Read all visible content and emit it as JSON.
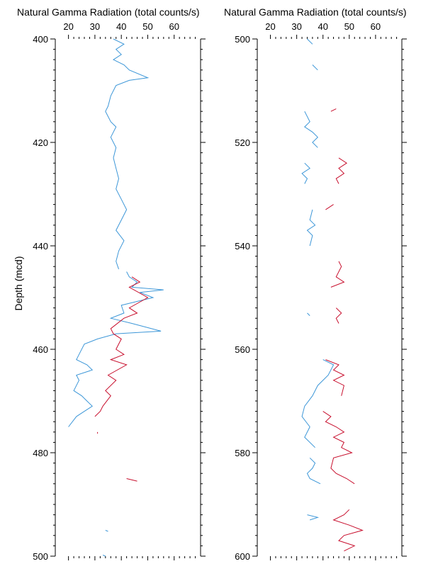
{
  "colors": {
    "blue": "#3d97d8",
    "red": "#c8102e"
  },
  "chart_data": [
    {
      "type": "line",
      "title": "Natural Gamma Radiation (total counts/s)",
      "ylabel": "Depth (mcd)",
      "xlim": [
        15,
        70
      ],
      "ylim": [
        400,
        500
      ],
      "y_reversed": true,
      "x_ticks": [
        "20",
        "30",
        "40",
        "50",
        "60"
      ],
      "y_ticks": [
        "400",
        "420",
        "440",
        "460",
        "480",
        "500"
      ],
      "series": [
        {
          "color": "blue",
          "segments": [
            [
              [
                37,
                400
              ],
              [
                41,
                401
              ],
              [
                38,
                402
              ],
              [
                40,
                403
              ],
              [
                37,
                404
              ],
              [
                41,
                405
              ],
              [
                43,
                406
              ],
              [
                50,
                407.5
              ],
              [
                43,
                408
              ],
              [
                38,
                409
              ],
              [
                36,
                411
              ],
              [
                35,
                413
              ],
              [
                34,
                414
              ],
              [
                36,
                416
              ],
              [
                38,
                417
              ],
              [
                36,
                419
              ],
              [
                38,
                421
              ],
              [
                37,
                423
              ],
              [
                38,
                425
              ],
              [
                39,
                427
              ],
              [
                38,
                429
              ],
              [
                40,
                431
              ],
              [
                42,
                433
              ],
              [
                40,
                435
              ],
              [
                38,
                437
              ],
              [
                41,
                439
              ],
              [
                39,
                441
              ],
              [
                38,
                443
              ],
              [
                39,
                444.5
              ]
            ],
            [
              [
                42,
                445
              ],
              [
                43,
                446
              ],
              [
                46,
                447
              ],
              [
                44,
                448
              ],
              [
                56,
                448.5
              ],
              [
                47,
                449
              ],
              [
                52,
                450
              ],
              [
                40,
                451.5
              ],
              [
                41,
                453
              ],
              [
                36,
                454
              ],
              [
                44,
                455
              ],
              [
                55,
                456.5
              ],
              [
                38,
                457
              ],
              [
                31,
                458
              ],
              [
                26,
                459
              ],
              [
                24,
                461
              ],
              [
                23,
                462
              ],
              [
                27,
                463
              ],
              [
                29,
                464
              ],
              [
                23,
                465
              ],
              [
                24,
                466
              ],
              [
                22,
                468
              ],
              [
                25,
                469
              ],
              [
                27,
                470
              ],
              [
                29,
                471
              ],
              [
                26,
                472
              ],
              [
                23,
                473
              ],
              [
                20,
                475
              ]
            ]
          ]
        },
        {
          "color": "red",
          "segments": [
            [
              [
                44,
                446
              ],
              [
                47,
                447
              ],
              [
                43,
                448
              ],
              [
                50,
                450
              ],
              [
                43,
                452
              ],
              [
                46,
                453
              ],
              [
                41,
                454
              ],
              [
                36,
                456
              ],
              [
                37,
                457
              ],
              [
                40,
                458
              ],
              [
                38,
                460
              ],
              [
                41,
                461
              ],
              [
                36,
                462
              ],
              [
                42,
                463
              ],
              [
                35,
                465
              ],
              [
                38,
                466
              ],
              [
                34,
                468
              ],
              [
                36,
                469
              ],
              [
                33,
                471
              ],
              [
                32,
                472
              ],
              [
                30,
                473
              ]
            ],
            [
              [
                31,
                476
              ],
              [
                31,
                476.3
              ]
            ],
            [
              [
                42,
                485
              ],
              [
                46,
                485.5
              ]
            ]
          ]
        },
        {
          "color": "blue",
          "segments": [
            [
              [
                34,
                495
              ],
              [
                35,
                495.2
              ]
            ],
            [
              [
                33,
                499.8
              ],
              [
                34,
                500
              ]
            ]
          ]
        }
      ]
    },
    {
      "type": "line",
      "title": "Natural Gamma Radiation (total counts/s)",
      "ylabel": "",
      "xlim": [
        15,
        70
      ],
      "ylim": [
        500,
        600
      ],
      "y_reversed": true,
      "x_ticks": [
        "20",
        "30",
        "40",
        "50",
        "60"
      ],
      "y_ticks": [
        "500",
        "520",
        "540",
        "560",
        "580",
        "600"
      ],
      "series": [
        {
          "color": "blue",
          "segments": [
            [
              [
                34,
                500
              ],
              [
                36,
                501
              ]
            ],
            [
              [
                36,
                505
              ],
              [
                38,
                506
              ]
            ],
            [
              [
                33,
                514
              ],
              [
                35,
                516
              ],
              [
                33,
                517
              ],
              [
                36,
                518
              ],
              [
                38,
                519
              ],
              [
                36,
                520
              ],
              [
                38,
                521
              ]
            ],
            [
              [
                33,
                524
              ],
              [
                35,
                525
              ],
              [
                32,
                526
              ],
              [
                34,
                527
              ],
              [
                33,
                528
              ]
            ],
            [
              [
                36,
                533
              ],
              [
                35,
                535
              ],
              [
                37,
                536
              ],
              [
                34,
                537
              ],
              [
                36,
                538
              ],
              [
                35,
                540
              ]
            ],
            [
              [
                34,
                553
              ],
              [
                35,
                553.5
              ]
            ],
            [
              [
                40,
                562
              ],
              [
                44,
                563
              ],
              [
                42,
                565
              ],
              [
                38,
                567
              ],
              [
                36,
                569
              ],
              [
                33,
                571
              ],
              [
                32,
                573
              ],
              [
                35,
                575
              ],
              [
                33,
                577
              ],
              [
                37,
                579
              ]
            ],
            [
              [
                35,
                581
              ],
              [
                37,
                582
              ],
              [
                36,
                583
              ],
              [
                34,
                584
              ],
              [
                35,
                585
              ],
              [
                39,
                586
              ]
            ],
            [
              [
                34,
                592
              ],
              [
                38,
                592.5
              ],
              [
                35,
                593
              ]
            ]
          ]
        },
        {
          "color": "red",
          "segments": [
            [
              [
                43,
                514
              ],
              [
                45,
                513.5
              ]
            ],
            [
              [
                46,
                523
              ],
              [
                49,
                524
              ],
              [
                46,
                525
              ],
              [
                48,
                526
              ],
              [
                45,
                527
              ],
              [
                46,
                528
              ]
            ],
            [
              [
                41,
                533
              ],
              [
                44,
                532
              ]
            ],
            [
              [
                46,
                543
              ],
              [
                47,
                544
              ],
              [
                45,
                546
              ],
              [
                48,
                547
              ],
              [
                43,
                548
              ]
            ],
            [
              [
                45,
                552
              ],
              [
                47,
                553
              ],
              [
                45,
                554
              ],
              [
                46,
                555
              ]
            ],
            [
              [
                41,
                562
              ],
              [
                46,
                563
              ],
              [
                44,
                564
              ],
              [
                48,
                565
              ],
              [
                44,
                566
              ],
              [
                48,
                567
              ],
              [
                47,
                569
              ]
            ],
            [
              [
                40,
                572
              ],
              [
                43,
                573
              ],
              [
                41,
                574
              ],
              [
                45,
                575
              ],
              [
                48,
                576
              ],
              [
                44,
                577
              ],
              [
                48,
                578
              ],
              [
                47,
                579
              ],
              [
                51,
                580
              ],
              [
                44,
                581
              ],
              [
                43,
                583
              ],
              [
                45,
                584
              ],
              [
                49,
                585
              ],
              [
                52,
                586
              ]
            ],
            [
              [
                50,
                591
              ],
              [
                48,
                592
              ],
              [
                44,
                593
              ],
              [
                50,
                594
              ],
              [
                55,
                595
              ],
              [
                48,
                596
              ],
              [
                46,
                597
              ],
              [
                52,
                598
              ],
              [
                48,
                599
              ]
            ]
          ]
        }
      ]
    }
  ]
}
